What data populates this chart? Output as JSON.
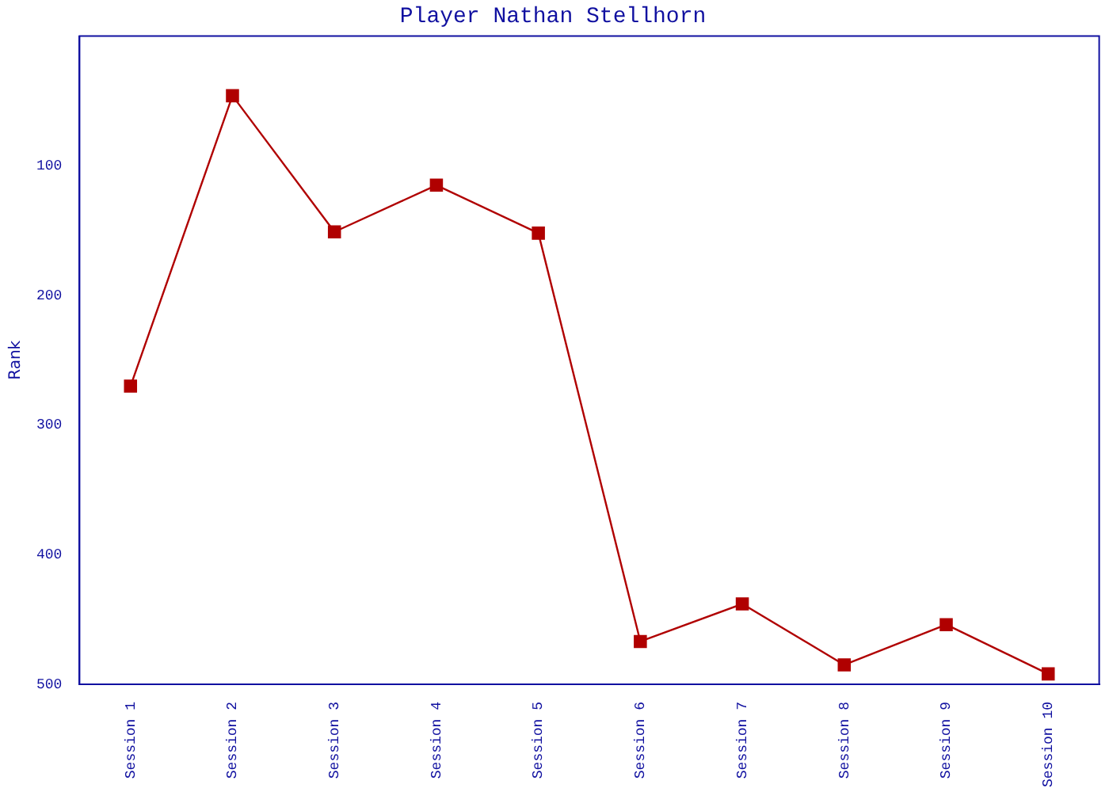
{
  "chart_data": {
    "type": "line",
    "title": "Player Nathan Stellhorn",
    "ylabel": "Rank",
    "categories": [
      "Session 1",
      "Session 2",
      "Session 3",
      "Session 4",
      "Session 5",
      "Session 6",
      "Session 7",
      "Session 8",
      "Session 9",
      "Session 10"
    ],
    "series": [
      {
        "color": "#b00000",
        "values": [
          270,
          46,
          151,
          115,
          152,
          467,
          438,
          485,
          454,
          492
        ]
      }
    ],
    "ylim": [
      500,
      0
    ],
    "yticks": [
      100,
      200,
      300,
      400,
      500
    ],
    "grid": false,
    "legend": false,
    "marker": "square",
    "line_style": "solid"
  }
}
